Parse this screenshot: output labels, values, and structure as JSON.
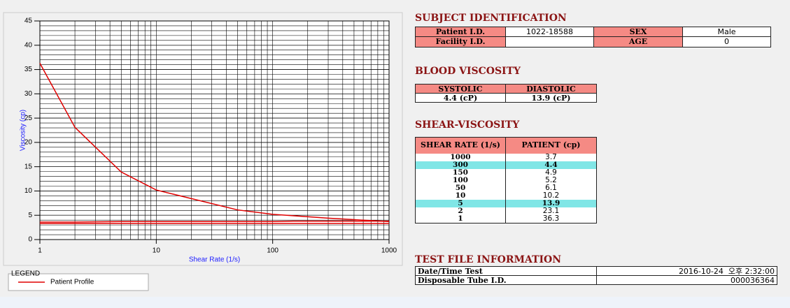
{
  "chart_data": {
    "type": "line",
    "x_label": "Shear Rate (1/s)",
    "y_label": "Viscosity (cp)",
    "x": [
      1,
      2,
      5,
      10,
      50,
      100,
      150,
      300,
      1000
    ],
    "x_log": true,
    "xlim": [
      1,
      1000
    ],
    "xticks": [
      1,
      10,
      100,
      1000
    ],
    "ylim": [
      0,
      45
    ],
    "yticks": [
      0,
      5,
      10,
      15,
      20,
      25,
      30,
      35,
      40,
      45
    ],
    "grid": true,
    "minor_grid": true,
    "legend_title": "LEGEND",
    "series": [
      {
        "name": "Patient Profile",
        "color": "#e00000",
        "values": [
          36.3,
          23.1,
          13.9,
          10.2,
          6.1,
          5.2,
          4.9,
          4.4,
          3.7
        ]
      },
      {
        "color": "#e00000",
        "values": [
          3.3,
          3.3,
          3.3,
          3.3,
          3.3,
          3.3,
          3.3,
          3.3,
          3.3
        ]
      },
      {
        "color": "#e00000",
        "values": [
          3.6,
          3.6,
          3.7,
          3.7,
          3.7,
          3.7,
          3.8,
          3.8,
          3.8
        ]
      }
    ]
  },
  "subject": {
    "title": "SUBJECT IDENTIFICATION",
    "rows": [
      [
        "Patient I.D.",
        "1022-18588",
        "SEX",
        "Male"
      ],
      [
        "Facility I.D.",
        null,
        "AGE",
        "0"
      ]
    ]
  },
  "blood": {
    "title": "BLOOD VISCOSITY",
    "headers": [
      "SYSTOLIC",
      "DIASTOLIC"
    ],
    "values": [
      "4.4 (cP)",
      "13.9 (cP)"
    ]
  },
  "shear": {
    "title": "SHEAR-VISCOSITY",
    "headers": [
      "SHEAR RATE (1/s)",
      "PATIENT (cp)"
    ],
    "highlight_rows": [
      1,
      6
    ],
    "rows": [
      [
        "1000",
        "3.7"
      ],
      [
        "300",
        "4.4"
      ],
      [
        "150",
        "4.9"
      ],
      [
        "100",
        "5.2"
      ],
      [
        "50",
        "6.1"
      ],
      [
        "10",
        "10.2"
      ],
      [
        "5",
        "13.9"
      ],
      [
        "2",
        "23.1"
      ],
      [
        "1",
        "36.3"
      ]
    ]
  },
  "test_file": {
    "title": "TEST FILE INFORMATION",
    "rows": [
      [
        "Date/Time Test",
        "2016-10-24  오후 2:32:00"
      ],
      [
        "Disposable Tube I.D.",
        "000036364"
      ]
    ]
  }
}
